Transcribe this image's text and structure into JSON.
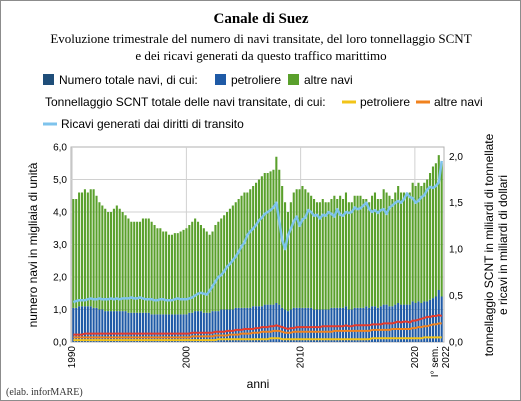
{
  "chart_data": {
    "type": "bar",
    "title": "Canale di Suez",
    "subtitle_lines": [
      "Evoluzione trimestrale del numero di navi transitate, del loro tonnellaggio SCNT",
      "e dei ricavi generati da questo traffico marittimo"
    ],
    "legend": {
      "row1_prefix": "Numero totale navi, di cui:",
      "row2_prefix": "Tonnellaggio SCNT totale delle navi transitate, di cui:"
    },
    "xlabel": "anni",
    "ylabel_left": "numero navi in migliaia di unità",
    "ylabel_right": [
      "tonnellaggio SCNT in miliardi di tonnellate",
      "e ricavi in miliardi di dollari"
    ],
    "source": "(elab. inforMARE)",
    "x_ticks": [
      "1990",
      "2000",
      "2010",
      "2020",
      "I° sem. 2022"
    ],
    "y_left": {
      "min": 0,
      "max": 6,
      "ticks": [
        "0,0",
        "1,0",
        "2,0",
        "3,0",
        "4,0",
        "5,0",
        "6,0"
      ]
    },
    "y_right": {
      "min": 0,
      "max": 2.1,
      "ticks": [
        "0,0",
        "0,5",
        "1,0",
        "1,5",
        "2,0"
      ]
    },
    "grid": true,
    "colors": {
      "tankers_ships": "#1f5aa6",
      "other_ships": "#5aa02c",
      "total_ships_legend": "#1f4e79",
      "tankers_tonnage": "#f2c418",
      "other_tonnage": "#f0821e",
      "revenue": "#7ec3ec",
      "tonnage_total": "#e53b2c"
    },
    "x_start": 1990.0,
    "x_step": 0.25,
    "series": [
      {
        "key": "total_ships",
        "name": "Numero totale navi, di cui:",
        "type": "bar",
        "axis": "left",
        "values": [
          4.4,
          4.4,
          4.6,
          4.6,
          4.7,
          4.6,
          4.7,
          4.7,
          4.5,
          4.3,
          4.2,
          4.1,
          4.0,
          4.0,
          4.1,
          4.2,
          4.1,
          4.0,
          3.9,
          3.8,
          3.7,
          3.7,
          3.7,
          3.7,
          3.8,
          3.8,
          3.8,
          3.7,
          3.6,
          3.5,
          3.5,
          3.4,
          3.4,
          3.3,
          3.3,
          3.35,
          3.35,
          3.4,
          3.45,
          3.5,
          3.6,
          3.7,
          3.8,
          3.7,
          3.6,
          3.5,
          3.4,
          3.3,
          3.4,
          3.6,
          3.7,
          3.8,
          3.9,
          4.0,
          4.1,
          4.2,
          4.3,
          4.4,
          4.5,
          4.6,
          4.6,
          4.7,
          4.8,
          4.9,
          5.0,
          5.1,
          5.2,
          5.2,
          5.25,
          5.3,
          5.7,
          5.3,
          4.8,
          4.3,
          4.0,
          4.3,
          4.6,
          4.7,
          4.7,
          4.8,
          4.7,
          4.6,
          4.5,
          4.4,
          4.3,
          4.3,
          4.4,
          4.3,
          4.3,
          4.4,
          4.5,
          4.4,
          4.5,
          4.4,
          4.6,
          4.3,
          4.3,
          4.5,
          4.5,
          4.5,
          4.4,
          4.4,
          4.3,
          4.5,
          4.6,
          4.4,
          4.4,
          4.7,
          4.6,
          4.5,
          4.4,
          4.6,
          4.8,
          4.6,
          4.6,
          4.6,
          4.6,
          4.9,
          4.8,
          4.9,
          4.8,
          4.9,
          5.0,
          5.2,
          5.4,
          5.5,
          5.75,
          5.5
        ]
      },
      {
        "key": "tankers_ships",
        "name": "petroliere",
        "type": "bar",
        "axis": "left",
        "values": [
          1.05,
          1.05,
          1.1,
          1.1,
          1.1,
          1.1,
          1.1,
          1.05,
          1.05,
          1.0,
          1.0,
          0.95,
          0.95,
          0.95,
          0.95,
          0.95,
          0.95,
          0.95,
          0.95,
          0.9,
          0.9,
          0.9,
          0.9,
          0.9,
          0.9,
          0.9,
          0.9,
          0.85,
          0.85,
          0.85,
          0.85,
          0.85,
          0.85,
          0.85,
          0.85,
          0.85,
          0.85,
          0.85,
          0.85,
          0.85,
          0.9,
          0.9,
          0.95,
          0.95,
          0.95,
          0.9,
          0.9,
          0.9,
          0.95,
          0.95,
          0.95,
          1.0,
          1.0,
          1.0,
          1.0,
          1.0,
          1.05,
          1.05,
          1.05,
          1.05,
          1.05,
          1.05,
          1.1,
          1.1,
          1.1,
          1.1,
          1.15,
          1.15,
          1.15,
          1.15,
          1.2,
          1.15,
          1.05,
          1.0,
          0.95,
          1.0,
          1.05,
          1.05,
          1.05,
          1.05,
          1.05,
          1.05,
          1.05,
          1.0,
          1.0,
          1.0,
          1.0,
          1.0,
          1.0,
          1.05,
          1.05,
          1.05,
          1.05,
          1.05,
          1.1,
          1.0,
          1.0,
          1.05,
          1.05,
          1.05,
          1.05,
          1.1,
          1.05,
          1.1,
          1.1,
          1.05,
          1.1,
          1.15,
          1.15,
          1.1,
          1.1,
          1.15,
          1.2,
          1.15,
          1.15,
          1.15,
          1.15,
          1.25,
          1.2,
          1.25,
          1.2,
          1.25,
          1.25,
          1.3,
          1.35,
          1.4,
          1.6,
          1.4
        ]
      },
      {
        "key": "other_ships",
        "name": "altre navi",
        "type": "bar",
        "axis": "left",
        "values": [
          3.35,
          3.35,
          3.5,
          3.5,
          3.6,
          3.5,
          3.6,
          3.65,
          3.45,
          3.3,
          3.2,
          3.15,
          3.05,
          3.05,
          3.15,
          3.25,
          3.15,
          3.05,
          2.95,
          2.9,
          2.8,
          2.8,
          2.8,
          2.8,
          2.9,
          2.9,
          2.9,
          2.85,
          2.75,
          2.65,
          2.65,
          2.55,
          2.55,
          2.45,
          2.45,
          2.5,
          2.5,
          2.55,
          2.6,
          2.65,
          2.7,
          2.8,
          2.85,
          2.75,
          2.65,
          2.6,
          2.5,
          2.4,
          2.45,
          2.65,
          2.75,
          2.8,
          2.9,
          3.0,
          3.1,
          3.2,
          3.25,
          3.35,
          3.45,
          3.55,
          3.55,
          3.65,
          3.7,
          3.8,
          3.9,
          4.0,
          4.05,
          4.05,
          4.1,
          4.15,
          4.5,
          4.15,
          3.75,
          3.3,
          3.05,
          3.3,
          3.55,
          3.65,
          3.65,
          3.75,
          3.65,
          3.55,
          3.45,
          3.4,
          3.3,
          3.3,
          3.4,
          3.3,
          3.3,
          3.35,
          3.45,
          3.35,
          3.45,
          3.35,
          3.5,
          3.3,
          3.3,
          3.45,
          3.45,
          3.45,
          3.35,
          3.3,
          3.25,
          3.4,
          3.5,
          3.35,
          3.3,
          3.55,
          3.45,
          3.4,
          3.3,
          3.45,
          3.6,
          3.45,
          3.45,
          3.45,
          3.45,
          3.65,
          3.6,
          3.65,
          3.6,
          3.65,
          3.75,
          3.9,
          4.05,
          4.1,
          4.15,
          4.1
        ]
      },
      {
        "key": "tonnage_total",
        "name": "Tonnellaggio SCNT totale delle navi transitate, di cui:",
        "type": "line",
        "axis": "right",
        "values": [
          0.08,
          0.08,
          0.08,
          0.08,
          0.09,
          0.09,
          0.09,
          0.09,
          0.09,
          0.09,
          0.09,
          0.09,
          0.09,
          0.09,
          0.09,
          0.09,
          0.09,
          0.09,
          0.09,
          0.09,
          0.09,
          0.09,
          0.09,
          0.09,
          0.09,
          0.09,
          0.09,
          0.09,
          0.09,
          0.09,
          0.09,
          0.09,
          0.09,
          0.09,
          0.09,
          0.09,
          0.09,
          0.09,
          0.09,
          0.09,
          0.09,
          0.1,
          0.1,
          0.1,
          0.1,
          0.1,
          0.1,
          0.1,
          0.1,
          0.11,
          0.11,
          0.11,
          0.11,
          0.12,
          0.12,
          0.12,
          0.13,
          0.13,
          0.13,
          0.14,
          0.14,
          0.14,
          0.14,
          0.15,
          0.15,
          0.16,
          0.16,
          0.16,
          0.17,
          0.17,
          0.18,
          0.17,
          0.16,
          0.15,
          0.14,
          0.15,
          0.15,
          0.16,
          0.16,
          0.16,
          0.16,
          0.16,
          0.16,
          0.16,
          0.16,
          0.16,
          0.17,
          0.17,
          0.17,
          0.17,
          0.17,
          0.17,
          0.17,
          0.17,
          0.18,
          0.17,
          0.17,
          0.18,
          0.18,
          0.18,
          0.18,
          0.18,
          0.18,
          0.19,
          0.19,
          0.19,
          0.19,
          0.2,
          0.2,
          0.2,
          0.2,
          0.21,
          0.22,
          0.21,
          0.22,
          0.22,
          0.21,
          0.23,
          0.23,
          0.24,
          0.25,
          0.26,
          0.27,
          0.27,
          0.28,
          0.28,
          0.29,
          0.28
        ]
      },
      {
        "key": "tankers_tonnage",
        "name": "petroliere",
        "type": "line",
        "axis": "right",
        "values": [
          0.02,
          0.02,
          0.02,
          0.02,
          0.02,
          0.02,
          0.02,
          0.02,
          0.02,
          0.02,
          0.02,
          0.02,
          0.02,
          0.02,
          0.02,
          0.02,
          0.02,
          0.02,
          0.02,
          0.02,
          0.02,
          0.02,
          0.02,
          0.02,
          0.02,
          0.02,
          0.02,
          0.02,
          0.02,
          0.02,
          0.02,
          0.02,
          0.02,
          0.02,
          0.02,
          0.02,
          0.02,
          0.02,
          0.02,
          0.02,
          0.02,
          0.02,
          0.02,
          0.02,
          0.02,
          0.02,
          0.02,
          0.02,
          0.02,
          0.02,
          0.03,
          0.03,
          0.03,
          0.03,
          0.03,
          0.03,
          0.03,
          0.03,
          0.03,
          0.03,
          0.03,
          0.03,
          0.03,
          0.03,
          0.03,
          0.03,
          0.03,
          0.03,
          0.04,
          0.04,
          0.04,
          0.04,
          0.03,
          0.03,
          0.03,
          0.03,
          0.03,
          0.03,
          0.03,
          0.03,
          0.03,
          0.03,
          0.03,
          0.03,
          0.03,
          0.03,
          0.03,
          0.03,
          0.03,
          0.03,
          0.03,
          0.03,
          0.03,
          0.03,
          0.03,
          0.03,
          0.03,
          0.03,
          0.03,
          0.03,
          0.03,
          0.03,
          0.03,
          0.04,
          0.04,
          0.04,
          0.04,
          0.04,
          0.04,
          0.04,
          0.04,
          0.04,
          0.04,
          0.04,
          0.04,
          0.04,
          0.04,
          0.04,
          0.04,
          0.04,
          0.04,
          0.05,
          0.05,
          0.05,
          0.05,
          0.05,
          0.05,
          0.05
        ]
      },
      {
        "key": "other_tonnage",
        "name": "altre navi",
        "type": "line",
        "axis": "right",
        "values": [
          0.05,
          0.05,
          0.05,
          0.05,
          0.05,
          0.05,
          0.05,
          0.05,
          0.05,
          0.05,
          0.05,
          0.05,
          0.05,
          0.05,
          0.05,
          0.05,
          0.05,
          0.05,
          0.05,
          0.05,
          0.05,
          0.05,
          0.05,
          0.05,
          0.05,
          0.05,
          0.05,
          0.05,
          0.05,
          0.05,
          0.05,
          0.05,
          0.05,
          0.05,
          0.05,
          0.05,
          0.05,
          0.05,
          0.05,
          0.05,
          0.05,
          0.06,
          0.06,
          0.06,
          0.06,
          0.06,
          0.06,
          0.06,
          0.06,
          0.07,
          0.07,
          0.07,
          0.07,
          0.07,
          0.08,
          0.08,
          0.08,
          0.08,
          0.09,
          0.09,
          0.09,
          0.09,
          0.1,
          0.1,
          0.1,
          0.11,
          0.11,
          0.11,
          0.11,
          0.12,
          0.12,
          0.12,
          0.11,
          0.1,
          0.1,
          0.1,
          0.11,
          0.11,
          0.11,
          0.11,
          0.11,
          0.11,
          0.11,
          0.11,
          0.11,
          0.11,
          0.11,
          0.11,
          0.11,
          0.11,
          0.12,
          0.12,
          0.12,
          0.12,
          0.12,
          0.12,
          0.12,
          0.12,
          0.12,
          0.12,
          0.12,
          0.12,
          0.12,
          0.13,
          0.13,
          0.13,
          0.13,
          0.13,
          0.13,
          0.13,
          0.14,
          0.14,
          0.14,
          0.14,
          0.14,
          0.14,
          0.14,
          0.15,
          0.15,
          0.16,
          0.16,
          0.17,
          0.17,
          0.18,
          0.19,
          0.19,
          0.2,
          0.2
        ]
      },
      {
        "key": "revenue",
        "name": "Ricavi generati dai diritti di transito",
        "type": "line",
        "axis": "right",
        "values": [
          0.43,
          0.44,
          0.45,
          0.45,
          0.45,
          0.46,
          0.47,
          0.46,
          0.46,
          0.47,
          0.46,
          0.46,
          0.46,
          0.47,
          0.46,
          0.47,
          0.46,
          0.47,
          0.47,
          0.47,
          0.48,
          0.47,
          0.47,
          0.48,
          0.47,
          0.46,
          0.46,
          0.46,
          0.45,
          0.45,
          0.46,
          0.46,
          0.45,
          0.45,
          0.45,
          0.46,
          0.47,
          0.46,
          0.46,
          0.46,
          0.47,
          0.48,
          0.5,
          0.52,
          0.53,
          0.52,
          0.51,
          0.55,
          0.6,
          0.65,
          0.7,
          0.72,
          0.76,
          0.81,
          0.84,
          0.88,
          0.92,
          0.97,
          1.03,
          1.07,
          1.15,
          1.19,
          1.22,
          1.26,
          1.31,
          1.34,
          1.38,
          1.4,
          1.42,
          1.45,
          1.5,
          1.3,
          1.1,
          1.0,
          1.15,
          1.22,
          1.3,
          1.35,
          1.25,
          1.32,
          1.34,
          1.42,
          1.4,
          1.36,
          1.37,
          1.33,
          1.37,
          1.36,
          1.4,
          1.38,
          1.35,
          1.43,
          1.37,
          1.36,
          1.4,
          1.39,
          1.4,
          1.45,
          1.43,
          1.44,
          1.47,
          1.5,
          1.43,
          1.4,
          1.42,
          1.39,
          1.42,
          1.43,
          1.38,
          1.45,
          1.47,
          1.5,
          1.52,
          1.5,
          1.54,
          1.6,
          1.56,
          1.55,
          1.5,
          1.52,
          1.56,
          1.58,
          1.64,
          1.67,
          1.66,
          1.68,
          1.72,
          1.95
        ]
      }
    ]
  }
}
